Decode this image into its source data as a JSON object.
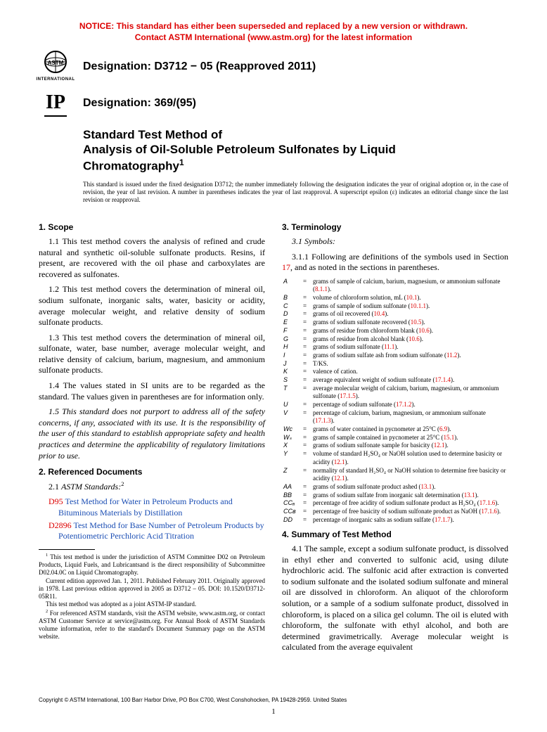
{
  "notice": {
    "line1": "NOTICE: This standard has either been superseded and replaced by a new version or withdrawn.",
    "line2": "Contact ASTM International (www.astm.org) for the latest information"
  },
  "logos": {
    "astm_label": "INTERNATIONAL",
    "ip": "IP"
  },
  "desig1": "Designation: D3712 − 05 (Reapproved 2011)",
  "desig2": "Designation: 369/(95)",
  "title": {
    "l1": "Standard Test Method of",
    "l2": "Analysis of Oil-Soluble Petroleum Sulfonates by Liquid",
    "l3": "Chromatography"
  },
  "issuance": "This standard is issued under the fixed designation D3712; the number immediately following the designation indicates the year of original adoption or, in the case of revision, the year of last revision. A number in parentheses indicates the year of last reapproval. A superscript epsilon (ε) indicates an editorial change since the last revision or reapproval.",
  "s1": {
    "h": "1. Scope",
    "p1": "1.1 This test method covers the analysis of refined and crude natural and synthetic oil-soluble sulfonate products. Resins, if present, are recovered with the oil phase and carboxylates are recovered as sulfonates.",
    "p2": "1.2 This test method covers the determination of mineral oil, sodium sulfonate, inorganic salts, water, basicity or acidity, average molecular weight, and relative density of sodium sulfonate products.",
    "p3": "1.3 This test method covers the determination of mineral oil, sulfonate, water, base number, average molecular weight, and relative density of calcium, barium, magnesium, and ammonium sulfonate products.",
    "p4": "1.4 The values stated in SI units are to be regarded as the standard. The values given in parentheses are for information only.",
    "p5": "1.5 This standard does not purport to address all of the safety concerns, if any, associated with its use. It is the responsibility of the user of this standard to establish appropriate safety and health practices and determine the applicability of regulatory limitations prior to use."
  },
  "s2": {
    "h": "2. Referenced Documents",
    "sub": "2.1 ",
    "astm": "ASTM Standards:",
    "r1d": "D95",
    "r1t": " Test Method for Water in Petroleum Products and Bituminous Materials by Distillation",
    "r2d": "D2896",
    "r2t": " Test Method for Base Number of Petroleum Products by Potentiometric Perchloric Acid Titration"
  },
  "fn": {
    "f1": " This test method is under the jurisdiction of ASTM Committee D02 on Petroleum Products, Liquid Fuels, and Lubricantsand is the direct responsibility of Subcommittee D02.04.0C on Liquid Chromatography.",
    "f1b": "Current edition approved Jan. 1, 2011. Published February 2011. Originally approved in 1978. Last previous edition approved in 2005 as D3712 – 05. DOI: 10.1520/D3712-05R11.",
    "f1c": "This test method was adopted as a joint ASTM-IP standard.",
    "f2": " For referenced ASTM standards, visit the ASTM website, www.astm.org, or contact ASTM Customer Service at service@astm.org. For Annual Book of ASTM Standards volume information, refer to the standard's Document Summary page on the ASTM website."
  },
  "s3": {
    "h": "3. Terminology",
    "sub": "3.1 Symbols:",
    "intro": "3.1.1 Following are definitions of the symbols used in Section 17, and as noted in the sections in parentheses."
  },
  "symbols": [
    {
      "s": "A",
      "d": "grams of sample of calcium, barium, magnesium, or ammonium sulfonate (",
      "r": "8.1.1",
      "e": ")."
    },
    {
      "s": "B",
      "d": "volume of chloroform solution, mL (",
      "r": "10.1",
      "e": ")."
    },
    {
      "s": "C",
      "d": "grams of sample of sodium sulfonate (",
      "r": "10.1.1",
      "e": ")."
    },
    {
      "s": "D",
      "d": "grams of oil recovered (",
      "r": "10.4",
      "e": ")."
    },
    {
      "s": "E",
      "d": "grams of sodium sulfonate recovered (",
      "r": "10.5",
      "e": ")."
    },
    {
      "s": "F",
      "d": "grams of residue from chloroform blank (",
      "r": "10.6",
      "e": ")."
    },
    {
      "s": "G",
      "d": "grams of residue from alcohol blank (",
      "r": "10.6",
      "e": ")."
    },
    {
      "s": "H",
      "d": "grams of sodium sulfonate (",
      "r": "11.1",
      "e": ")."
    },
    {
      "s": "I",
      "d": "grams of sodium sulfate ash from sodium sulfonate (",
      "r": "11.2",
      "e": ")."
    },
    {
      "s": "J",
      "d": "T/KS.",
      "r": "",
      "e": ""
    },
    {
      "s": "K",
      "d": "valence of cation.",
      "r": "",
      "e": ""
    },
    {
      "s": "S",
      "d": "average equivalent weight of sodium sulfonate (",
      "r": "17.1.4",
      "e": ")."
    },
    {
      "s": "T",
      "d": "average molecular weight of calcium, barium, magnesium, or ammonium sulfonate (",
      "r": "17.1.5",
      "e": ")."
    },
    {
      "s": "U",
      "d": "percentage of sodium sulfonate (",
      "r": "17.1.2",
      "e": ")."
    },
    {
      "s": "V",
      "d": "percentage of calcium, barium, magnesium, or ammonium sulfonate (",
      "r": "17.1.3",
      "e": ")."
    },
    {
      "s": "Wᴄ",
      "d": "grams of water contained in pycnometer at 25°C (",
      "r": "6.9",
      "e": ")."
    },
    {
      "s": "Wₛ",
      "d": "grams of sample contained in pycnometer at 25°C (",
      "r": "15.1",
      "e": ")."
    },
    {
      "s": "X",
      "d": "grams of sodium sulfonate sample for basicity (",
      "r": "12.1",
      "e": ")."
    },
    {
      "s": "Y",
      "d": "volume of standard H₂SO₄ or NaOH solution used to determine basicity or acidity (",
      "r": "12.1",
      "e": ")."
    },
    {
      "s": "Z",
      "d": "normality of standard H₂SO₄ or NaOH solution to determine free basicity or acidity (",
      "r": "12.1",
      "e": ")."
    },
    {
      "s": "AA",
      "d": "grams of sodium sulfonate product ashed (",
      "r": "13.1",
      "e": ")."
    },
    {
      "s": "BB",
      "d": "grams of sodium sulfate from inorganic salt determination (",
      "r": "13.1",
      "e": ")."
    },
    {
      "s": "CCₐ",
      "d": "percentage of free acidity of sodium sulfonate product as H₂SO₄ (",
      "r": "17.1.6",
      "e": ")."
    },
    {
      "s": "CCʙ",
      "d": "percentage of free basicity of sodium sulfonate product as NaOH (",
      "r": "17.1.6",
      "e": ")."
    },
    {
      "s": "DD",
      "d": "percentage of inorganic salts as sodium sulfate (",
      "r": "17.1.7",
      "e": ")."
    }
  ],
  "s4": {
    "h": "4. Summary of Test Method",
    "p1": "4.1 The sample, except a sodium sulfonate product, is dissolved in ethyl ether and converted to sulfonic acid, using dilute hydrochloric acid. The sulfonic acid after extraction is converted to sodium sulfonate and the isolated sodium sulfonate and mineral oil are dissolved in chloroform. An aliquot of the chloroform solution, or a sample of a sodium sulfonate product, dissolved in chloroform, is placed on a silica gel column. The oil is eluted with chloroform, the sulfonate with ethyl alcohol, and both are determined gravimetrically. Average molecular weight is calculated from the average equivalent"
  },
  "copyright": "Copyright © ASTM International, 100 Barr Harbor Drive, PO Box C700, West Conshohocken, PA 19428-2959. United States",
  "pagenum": "1"
}
